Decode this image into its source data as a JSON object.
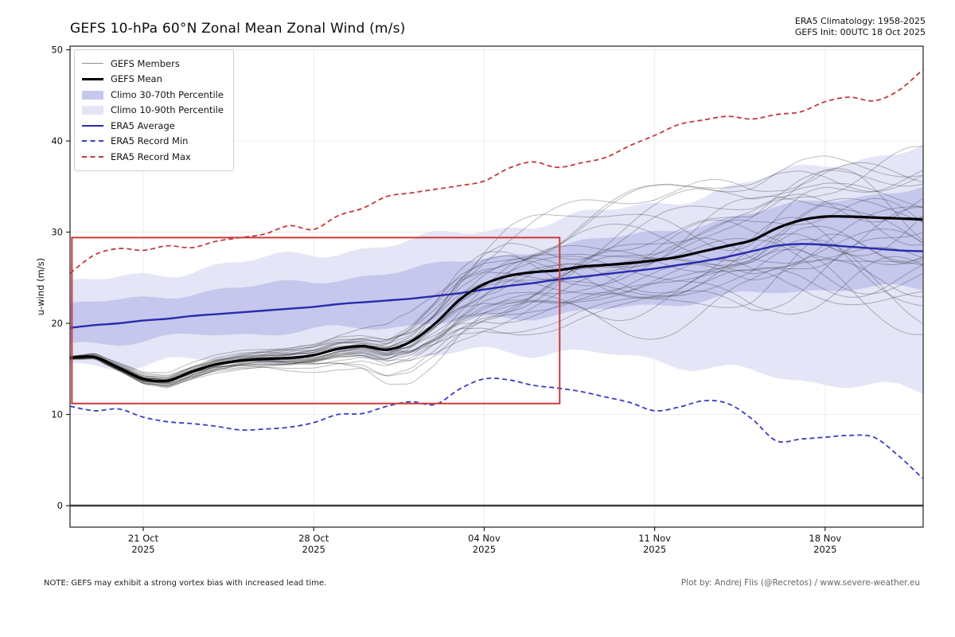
{
  "header": {
    "title": "GEFS 10-hPa 60°N Zonal Mean Zonal Wind (m/s)",
    "climatology": "ERA5 Climatology: 1958-2025",
    "init": "GEFS Init: 00UTC 18 Oct 2025"
  },
  "footer": {
    "note": "NOTE: GEFS may exhibit a strong vortex bias with increased lead time.",
    "credit": "Plot by: Andrej Flis (@Recretos) / www.severe-weather.eu"
  },
  "legend": {
    "items": [
      {
        "label": "GEFS Members",
        "swatch": {
          "type": "line",
          "color": "#8f8f8f",
          "width": 1
        }
      },
      {
        "label": "GEFS Mean",
        "swatch": {
          "type": "line",
          "color": "#000000",
          "width": 3
        }
      },
      {
        "label": "Climo 30-70th Percentile",
        "swatch": {
          "type": "patch",
          "color": "#c5c7ed"
        }
      },
      {
        "label": "Climo 10-90th Percentile",
        "swatch": {
          "type": "patch",
          "color": "#e4e5f6"
        }
      },
      {
        "label": "ERA5 Average",
        "swatch": {
          "type": "line",
          "color": "#2a2aae",
          "width": 2.5
        }
      },
      {
        "label": "ERA5 Record Min",
        "swatch": {
          "type": "dash",
          "color": "#3b3bc4",
          "width": 2
        }
      },
      {
        "label": "ERA5 Record Max",
        "swatch": {
          "type": "dash",
          "color": "#bf3b3b",
          "width": 2
        }
      }
    ]
  },
  "chart_data": {
    "type": "line",
    "title": "GEFS 10-hPa 60°N Zonal Mean Zonal Wind (m/s)",
    "xlabel": "",
    "ylabel": "u-wind (m/s)",
    "ylim": [
      -2.4,
      50.4
    ],
    "yticks": [
      0,
      10,
      20,
      30,
      40,
      50
    ],
    "x_unit": "days since 18 Oct 2025 00UTC",
    "x_range_days": [
      0,
      35.1
    ],
    "grid": true,
    "legend_position": "upper left",
    "xticks": [
      {
        "day": 3,
        "line1": "21 Oct",
        "line2": "2025"
      },
      {
        "day": 10,
        "line1": "28 Oct",
        "line2": "2025"
      },
      {
        "day": 17,
        "line1": "04 Nov",
        "line2": "2025"
      },
      {
        "day": 24,
        "line1": "11 Nov",
        "line2": "2025"
      },
      {
        "day": 31,
        "line1": "18 Nov",
        "line2": "2025"
      }
    ],
    "series": [
      {
        "name": "GEFS Mean",
        "color": "#000000",
        "width": 3.2,
        "dash": null,
        "values": [
          16.2,
          16.3,
          15.1,
          13.9,
          13.7,
          14.7,
          15.5,
          15.9,
          16.1,
          16.2,
          16.5,
          17.2,
          17.5,
          17.1,
          18.0,
          20.0,
          22.6,
          24.3,
          25.2,
          25.6,
          25.8,
          26.2,
          26.4,
          26.6,
          26.9,
          27.3,
          27.9,
          28.5,
          29.1,
          30.4,
          31.3,
          31.7,
          31.7,
          31.6,
          31.5,
          31.4
        ]
      },
      {
        "name": "ERA5 Average",
        "color": "#2a2aae",
        "width": 2.4,
        "dash": null,
        "values": [
          19.5,
          19.8,
          20.0,
          20.3,
          20.5,
          20.8,
          21.0,
          21.2,
          21.4,
          21.6,
          21.8,
          22.1,
          22.3,
          22.5,
          22.7,
          23.0,
          23.3,
          23.7,
          24.1,
          24.4,
          24.8,
          25.1,
          25.4,
          25.7,
          26.0,
          26.4,
          26.8,
          27.3,
          27.9,
          28.5,
          28.7,
          28.6,
          28.4,
          28.2,
          28.0,
          27.9
        ]
      },
      {
        "name": "ERA5 Record Min",
        "color": "#3b3bc4",
        "width": 1.8,
        "dash": "6,4",
        "values": [
          10.9,
          10.4,
          10.6,
          9.7,
          9.2,
          9.0,
          8.7,
          8.3,
          8.4,
          8.6,
          9.1,
          10.0,
          10.1,
          10.9,
          11.4,
          11.1,
          12.8,
          13.9,
          13.8,
          13.2,
          12.9,
          12.5,
          11.9,
          11.3,
          10.4,
          10.8,
          11.5,
          11.2,
          9.5,
          7.1,
          7.3,
          7.5,
          7.7,
          7.5,
          5.5,
          3.0
        ]
      },
      {
        "name": "ERA5 Record Max",
        "color": "#bf3b3b",
        "width": 1.8,
        "dash": "6,4",
        "values": [
          25.5,
          27.5,
          28.2,
          28.0,
          28.5,
          28.3,
          29.0,
          29.4,
          29.8,
          30.7,
          30.3,
          31.8,
          32.6,
          33.9,
          34.3,
          34.7,
          35.1,
          35.6,
          37.0,
          37.7,
          37.1,
          37.6,
          38.2,
          39.5,
          40.6,
          41.8,
          42.3,
          42.7,
          42.4,
          42.9,
          43.2,
          44.3,
          44.8,
          44.4,
          45.5,
          47.8
        ]
      }
    ],
    "bands": {
      "knot_days": [
        0,
        5,
        10,
        15,
        17,
        20,
        24,
        28,
        31,
        35
      ],
      "outer": {
        "name": "Climo 10-90th Percentile",
        "color": "#e4e5f6",
        "lo": [
          15.2,
          15.8,
          16.2,
          16.6,
          16.8,
          17.0,
          16.0,
          14.5,
          13.5,
          12.5
        ],
        "hi": [
          24.2,
          26.0,
          27.6,
          29.4,
          30.2,
          31.4,
          33.0,
          35.5,
          37.5,
          39.3
        ]
      },
      "inner": {
        "name": "Climo 30-70th Percentile",
        "color": "#c5c7ed",
        "lo": [
          17.6,
          18.6,
          19.2,
          20.0,
          20.4,
          21.0,
          22.0,
          23.2,
          23.8,
          23.8
        ],
        "hi": [
          21.9,
          23.4,
          24.6,
          26.2,
          27.2,
          28.4,
          30.0,
          32.0,
          33.6,
          34.8
        ]
      }
    },
    "members": {
      "name": "GEFS Members",
      "count": 31,
      "color": "#2e2e2e",
      "opacity": 0.32,
      "width": 1,
      "seed": 20251018,
      "spread_envelope_days": [
        0,
        2,
        5,
        8,
        10,
        12,
        14,
        16,
        18,
        21,
        24,
        28,
        31,
        35
      ],
      "spread_envelope": [
        0.15,
        0.35,
        0.8,
        1.0,
        1.3,
        1.8,
        3.2,
        4.3,
        5.0,
        5.3,
        5.8,
        7.0,
        7.8,
        8.3
      ],
      "value_clamp": [
        2.5,
        47.5
      ]
    },
    "annotation_box": {
      "day_start": 0.07,
      "day_end": 20.1,
      "value_min": 11.2,
      "value_max": 29.4,
      "color": "#cc3a3a",
      "width": 2
    }
  }
}
